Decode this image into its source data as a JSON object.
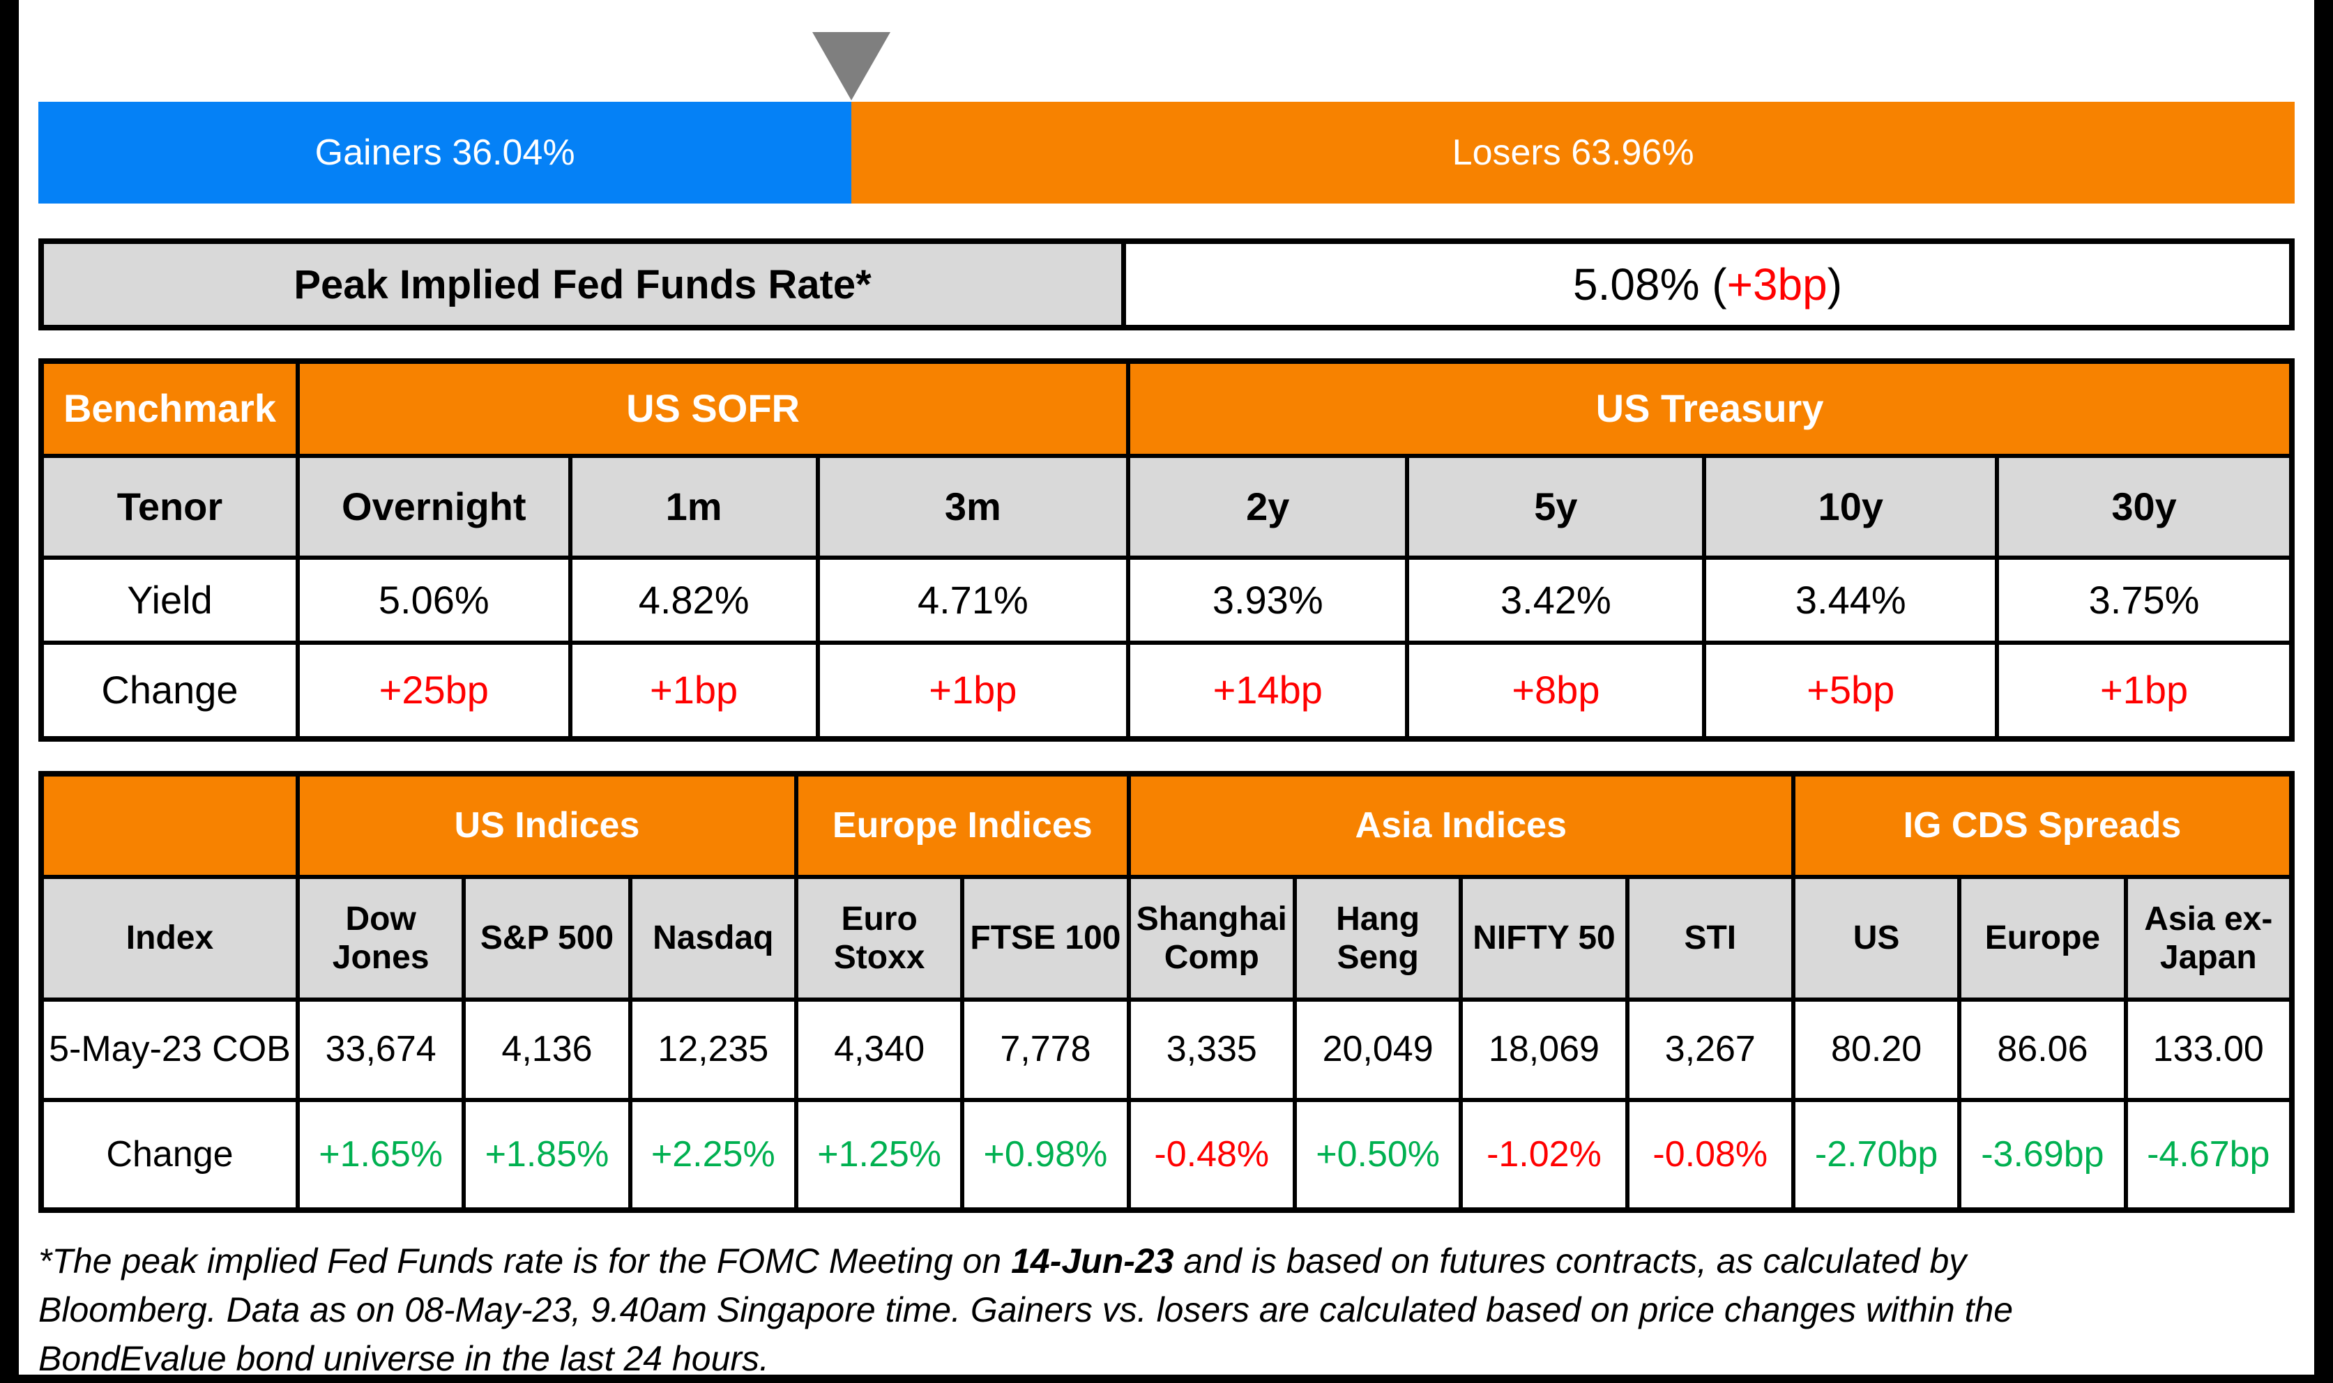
{
  "colors": {
    "blue": "#0581F6",
    "orange": "#F78200",
    "red": "#FF0000",
    "green": "#00B050",
    "gray_header": "#D9D9D9",
    "triangle_gray": "#7F7F7F",
    "border_black": "#000000"
  },
  "split_bar": {
    "gainers_label": "Gainers 36.04%",
    "losers_label": "Losers 63.96%",
    "gainers_width_pct": 36.04,
    "losers_width_pct": 63.96
  },
  "fed_funds": {
    "label": "Peak Implied Fed Funds Rate*",
    "rate": "5.08% ",
    "paren_open": "(",
    "change": "+3bp",
    "paren_close": ")"
  },
  "benchmark_table": {
    "corner": "Benchmark",
    "group_sofr": "US SOFR",
    "group_treasury": "US Treasury",
    "row_labels": {
      "tenor": "Tenor",
      "yield": "Yield",
      "change": "Change"
    },
    "tenors": [
      "Overnight",
      "1m",
      "3m",
      "2y",
      "5y",
      "10y",
      "30y"
    ],
    "yields": [
      "5.06%",
      "4.82%",
      "4.71%",
      "3.93%",
      "3.42%",
      "3.44%",
      "3.75%"
    ],
    "changes": [
      "+25bp",
      "+1bp",
      "+1bp",
      "+14bp",
      "+8bp",
      "+5bp",
      "+1bp"
    ]
  },
  "indices_table": {
    "row_labels": {
      "index": "Index",
      "date": "5-May-23 COB",
      "change": "Change"
    },
    "group_us": "US Indices",
    "group_europe": "Europe Indices",
    "group_asia": "Asia Indices",
    "group_cds": "IG CDS Spreads",
    "columns": [
      "Dow Jones",
      "S&P 500",
      "Nasdaq",
      "Euro Stoxx",
      "FTSE 100",
      "Shanghai Comp",
      "Hang Seng",
      "NIFTY 50",
      "STI",
      "US",
      "Europe",
      "Asia ex-Japan"
    ],
    "values": [
      "33,674",
      "4,136",
      "12,235",
      "4,340",
      "7,778",
      "3,335",
      "20,049",
      "18,069",
      "3,267",
      "80.20",
      "86.06",
      "133.00"
    ],
    "changes": [
      {
        "text": "+1.65%",
        "color": "#00B050"
      },
      {
        "text": "+1.85%",
        "color": "#00B050"
      },
      {
        "text": "+2.25%",
        "color": "#00B050"
      },
      {
        "text": "+1.25%",
        "color": "#00B050"
      },
      {
        "text": "+0.98%",
        "color": "#00B050"
      },
      {
        "text": "-0.48%",
        "color": "#FF0000"
      },
      {
        "text": "+0.50%",
        "color": "#00B050"
      },
      {
        "text": "-1.02%",
        "color": "#FF0000"
      },
      {
        "text": "-0.08%",
        "color": "#FF0000"
      },
      {
        "text": "-2.70bp",
        "color": "#00B050"
      },
      {
        "text": "-3.69bp",
        "color": "#00B050"
      },
      {
        "text": "-4.67bp",
        "color": "#00B050"
      }
    ]
  },
  "footnote": {
    "line1_pre": "*The peak implied Fed Funds rate is for the FOMC Meeting on ",
    "line1_bold": "14-Jun-23",
    "line1_post": " and is based on futures contracts, as calculated by",
    "line2": "Bloomberg. Data as on 08-May-23, 9.40am Singapore time. Gainers vs. losers are calculated based on price changes within the",
    "line3": "BondEvalue bond universe in the last 24 hours."
  },
  "chart_data": [
    {
      "type": "bar",
      "title": "Gainers vs Losers (BondEvalue bond universe, last 24 hours)",
      "categories": [
        "Gainers",
        "Losers"
      ],
      "values": [
        36.04,
        63.96
      ],
      "unit": "%",
      "orientation": "horizontal-stacked",
      "legend_position": "none",
      "colors": [
        "#0581F6",
        "#F78200"
      ]
    },
    {
      "type": "table",
      "title": "Benchmark — Peak Implied Fed Funds Rate* 5.08% (+3bp)",
      "columns": [
        "Tenor",
        "Overnight",
        "1m",
        "3m",
        "2y",
        "5y",
        "10y",
        "30y"
      ],
      "rows": [
        [
          "Yield",
          "5.06%",
          "4.82%",
          "4.71%",
          "3.93%",
          "3.42%",
          "3.44%",
          "3.75%"
        ],
        [
          "Change",
          "+25bp",
          "+1bp",
          "+1bp",
          "+14bp",
          "+8bp",
          "+5bp",
          "+1bp"
        ]
      ]
    },
    {
      "type": "table",
      "title": "Indices and IG CDS Spreads",
      "columns": [
        "Index",
        "Dow Jones",
        "S&P 500",
        "Nasdaq",
        "Euro Stoxx",
        "FTSE 100",
        "Shanghai Comp",
        "Hang Seng",
        "NIFTY 50",
        "STI",
        "US",
        "Europe",
        "Asia ex-Japan"
      ],
      "rows": [
        [
          "5-May-23 COB",
          "33,674",
          "4,136",
          "12,235",
          "4,340",
          "7,778",
          "3,335",
          "20,049",
          "18,069",
          "3,267",
          "80.20",
          "86.06",
          "133.00"
        ],
        [
          "Change",
          "+1.65%",
          "+1.85%",
          "+2.25%",
          "+1.25%",
          "+0.98%",
          "-0.48%",
          "+0.50%",
          "-1.02%",
          "-0.08%",
          "-2.70bp",
          "-3.69bp",
          "-4.67bp"
        ]
      ]
    }
  ]
}
